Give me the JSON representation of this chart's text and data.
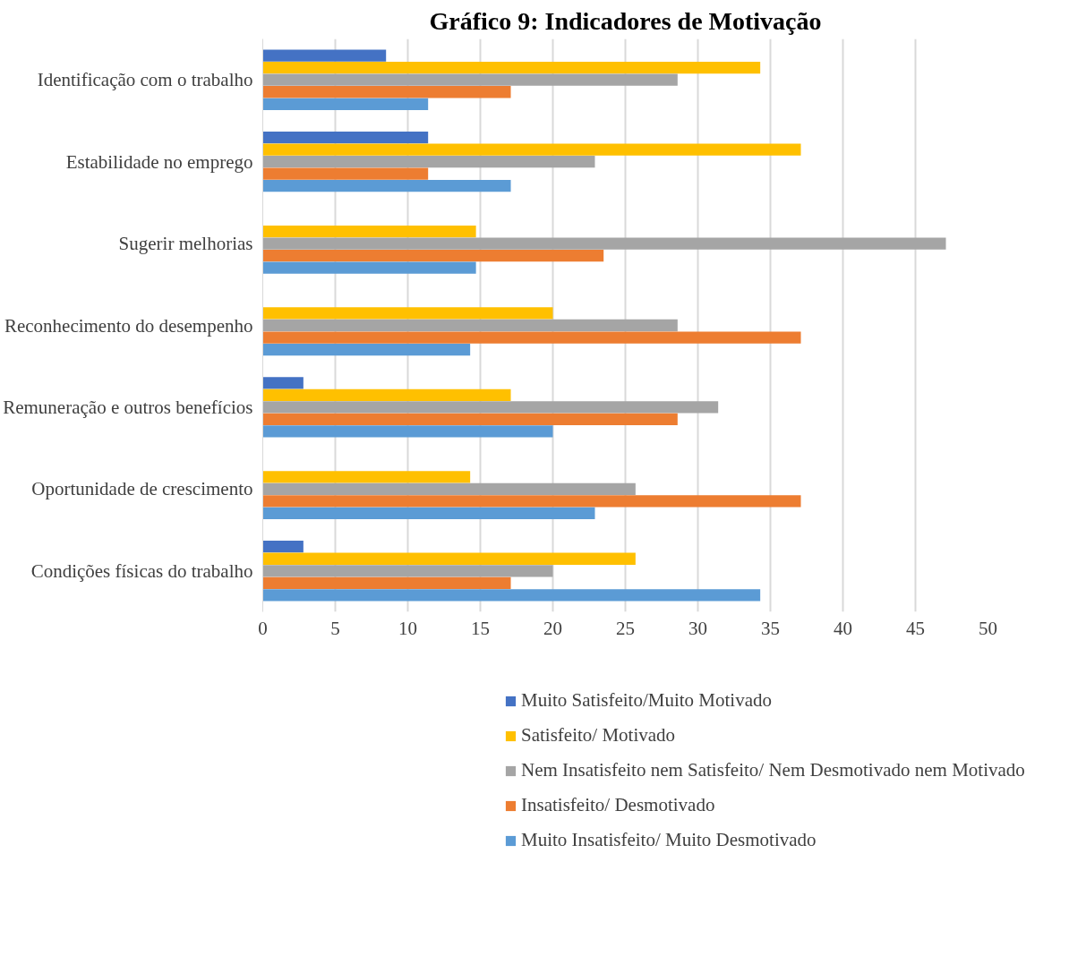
{
  "chart_data": {
    "type": "bar",
    "orientation": "horizontal",
    "title": "Gráfico 9: Indicadores de Motivação",
    "categories": [
      "Identificação com o trabalho",
      "Estabilidade no emprego",
      "Sugerir melhorias",
      "Reconhecimento do desempenho",
      "Remuneração e outros benefícios",
      "Oportunidade de crescimento",
      "Condições físicas do trabalho"
    ],
    "series": [
      {
        "name": "Muito Satisfeito/Muito Motivado",
        "color": "#4472c4",
        "values": [
          8.5,
          11.4,
          0,
          0,
          2.8,
          0,
          2.8
        ]
      },
      {
        "name": "Satisfeito/ Motivado",
        "color": "#ffc000",
        "values": [
          34.3,
          37.1,
          14.7,
          20,
          17.1,
          14.3,
          25.7
        ]
      },
      {
        "name": "Nem Insatisfeito nem Satisfeito/ Nem Desmotivado nem Motivado",
        "color": "#a5a5a5",
        "values": [
          28.6,
          22.9,
          47.1,
          28.6,
          31.4,
          25.7,
          20
        ]
      },
      {
        "name": "Insatisfeito/ Desmotivado",
        "color": "#ed7d31",
        "values": [
          17.1,
          11.4,
          23.5,
          37.1,
          28.6,
          37.1,
          17.1
        ]
      },
      {
        "name": "Muito Insatisfeito/ Muito Desmotivado",
        "color": "#5b9bd5",
        "values": [
          11.4,
          17.1,
          14.7,
          14.3,
          20,
          22.9,
          34.3
        ]
      }
    ],
    "xlim": [
      0,
      50
    ],
    "xticks": [
      0,
      5,
      10,
      15,
      20,
      25,
      30,
      35,
      40,
      45,
      50
    ],
    "grid": "x",
    "legend": "bottom"
  }
}
